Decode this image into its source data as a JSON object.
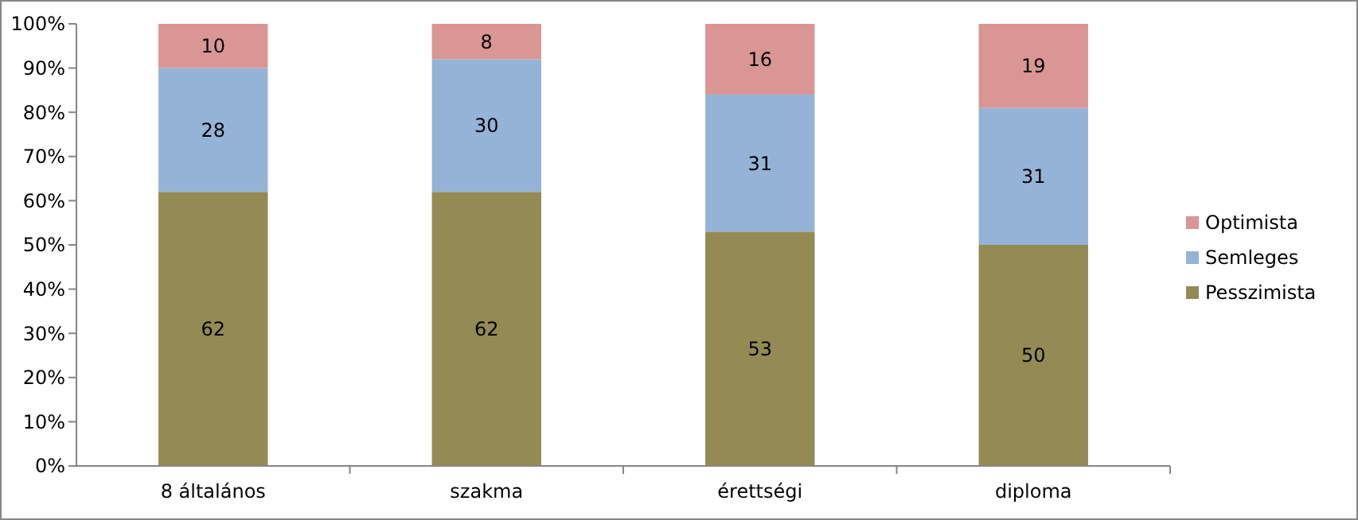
{
  "chart_data": {
    "type": "bar",
    "stacked": true,
    "categories": [
      "8 általános",
      "szakma",
      "érettségi",
      "diploma"
    ],
    "series": [
      {
        "name": "Pesszimista",
        "color": "#948a54",
        "values": [
          62,
          62,
          53,
          50
        ]
      },
      {
        "name": "Semleges",
        "color": "#95b3d7",
        "values": [
          28,
          30,
          31,
          31
        ]
      },
      {
        "name": "Optimista",
        "color": "#d99694",
        "values": [
          10,
          8,
          16,
          19
        ]
      }
    ],
    "ylim": [
      0,
      100
    ],
    "yticks": [
      {
        "value": 0,
        "label": "0%"
      },
      {
        "value": 10,
        "label": "10%"
      },
      {
        "value": 20,
        "label": "20%"
      },
      {
        "value": 30,
        "label": "30%"
      },
      {
        "value": 40,
        "label": "40%"
      },
      {
        "value": 50,
        "label": "50%"
      },
      {
        "value": 60,
        "label": "60%"
      },
      {
        "value": 70,
        "label": "70%"
      },
      {
        "value": 80,
        "label": "80%"
      },
      {
        "value": 90,
        "label": "90%"
      },
      {
        "value": 100,
        "label": "100%"
      }
    ],
    "data_labels": true,
    "legend": "right",
    "grid": false
  }
}
